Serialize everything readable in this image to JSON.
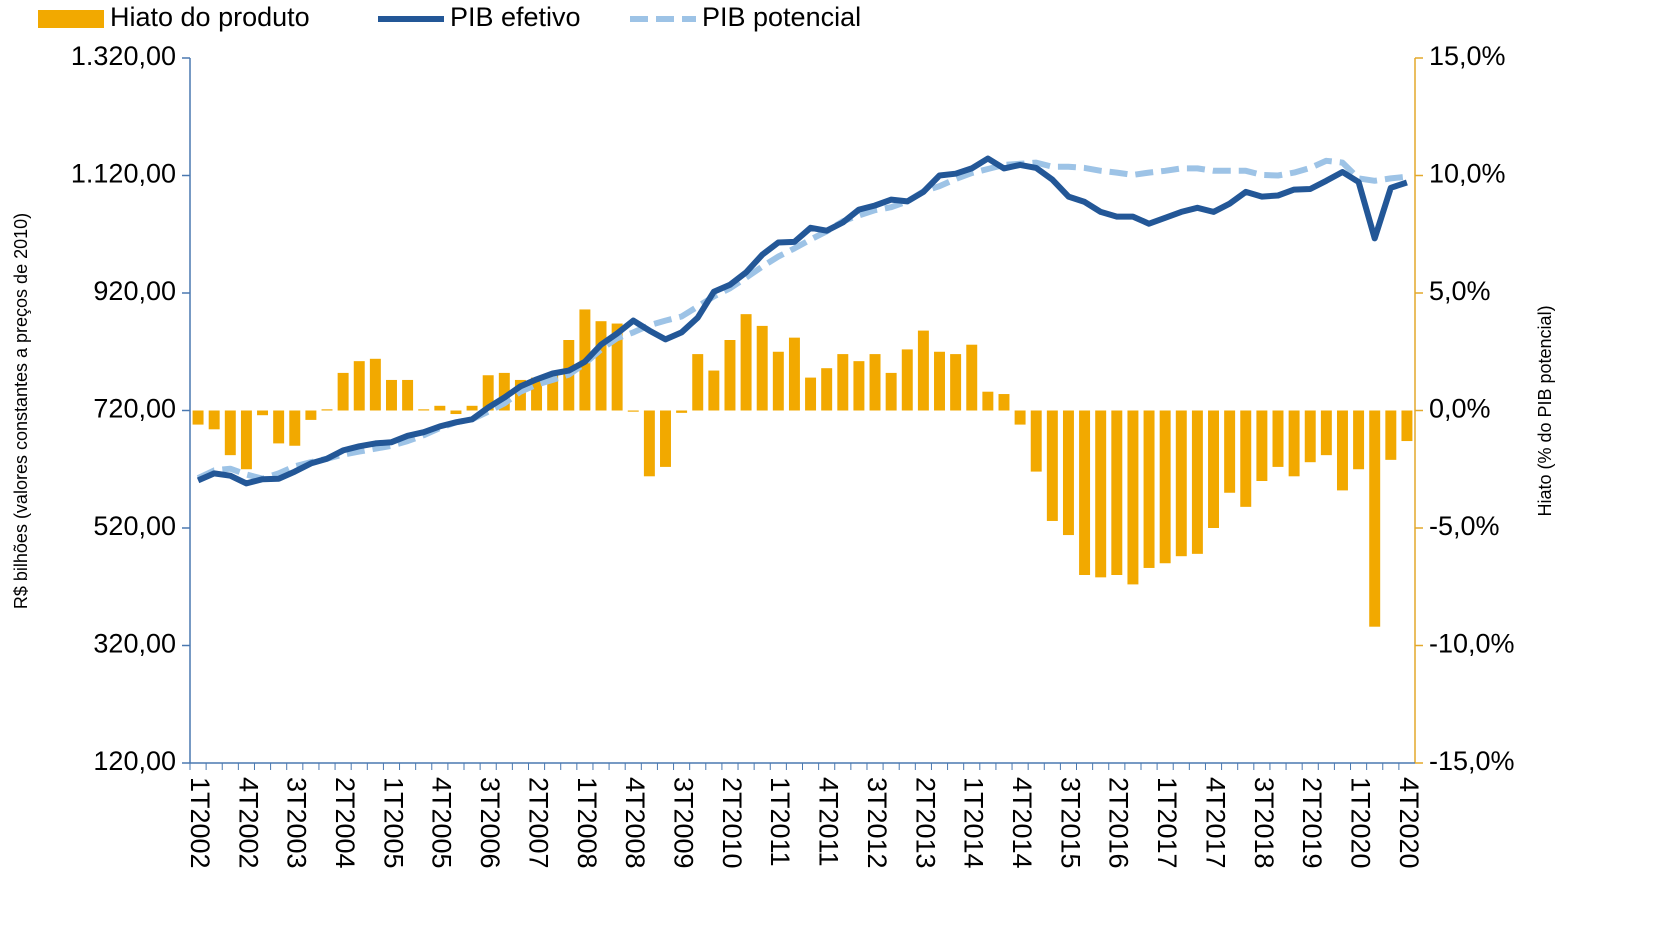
{
  "chart_data": {
    "type": "combo",
    "y_label": "R$ bilhões (valores constantes a preços de 2010)",
    "y2_label": "Hiato (% do PIB potencial)",
    "categories": [
      "1T2002",
      null,
      null,
      "4T2002",
      null,
      null,
      "3T2003",
      null,
      null,
      "2T2004",
      null,
      null,
      "1T2005",
      null,
      null,
      "4T2005",
      null,
      null,
      "3T2006",
      null,
      null,
      "2T2007",
      null,
      null,
      "1T2008",
      null,
      null,
      "4T2008",
      null,
      null,
      "3T2009",
      null,
      null,
      "2T2010",
      null,
      null,
      "1T2011",
      null,
      null,
      "4T2011",
      null,
      null,
      "3T2012",
      null,
      null,
      "2T2013",
      null,
      null,
      "1T2014",
      null,
      null,
      "4T2014",
      null,
      null,
      "3T2015",
      null,
      null,
      "2T2016",
      null,
      null,
      "1T2017",
      null,
      null,
      "4T2017",
      null,
      null,
      "3T2018",
      null,
      null,
      "2T2019",
      null,
      null,
      "1T2020",
      null,
      null,
      "4T2020"
    ],
    "series": [
      {
        "name": "Hiato do produto",
        "type": "bar",
        "axis": "y2",
        "color": "#f2a900",
        "values": [
          -0.6,
          -0.8,
          -1.9,
          -2.5,
          -0.2,
          -1.4,
          -1.5,
          -0.4,
          0.05,
          1.6,
          2.1,
          2.2,
          1.3,
          1.3,
          0.05,
          0.2,
          -0.15,
          0.2,
          1.5,
          1.6,
          1.3,
          1.4,
          1.5,
          3.0,
          4.3,
          3.8,
          3.7,
          -0.05,
          -2.8,
          -2.4,
          -0.1,
          2.4,
          1.7,
          3.0,
          4.1,
          3.6,
          2.5,
          3.1,
          1.4,
          1.8,
          2.4,
          2.1,
          2.4,
          1.6,
          2.6,
          3.4,
          2.5,
          2.4,
          2.8,
          0.8,
          0.7,
          -0.6,
          -2.6,
          -4.7,
          -5.3,
          -7.0,
          -7.1,
          -7.0,
          -7.4,
          -6.7,
          -6.5,
          -6.2,
          -6.1,
          -5.0,
          -3.5,
          -4.1,
          -3.0,
          -2.4,
          -2.8,
          -2.2,
          -1.9,
          -3.4,
          -2.5,
          -9.2,
          -2.1,
          -1.3
        ]
      },
      {
        "name": "PIB efetivo",
        "type": "line",
        "color": "#235797",
        "dashed": false,
        "values": [
          601,
          613,
          609,
          596,
          603,
          604,
          616,
          630,
          638,
          652,
          659,
          664,
          666,
          677,
          683,
          693,
          700,
          705,
          725,
          742,
          761,
          773,
          783,
          788,
          803,
          832,
          851,
          873,
          856,
          841,
          853,
          878,
          922,
          934,
          955,
          985,
          1006,
          1007,
          1031,
          1026,
          1040,
          1062,
          1069,
          1079,
          1076,
          1092,
          1120,
          1123,
          1132,
          1149,
          1132,
          1138,
          1133,
          1113,
          1084,
          1075,
          1058,
          1050,
          1050,
          1038,
          1048,
          1058,
          1065,
          1058,
          1072,
          1092,
          1084,
          1086,
          1096,
          1097,
          1111,
          1126,
          1109,
          1013,
          1099,
          1108
        ]
      },
      {
        "name": "PIB potencial",
        "type": "line",
        "color": "#9dc3e6",
        "dashed": true,
        "values": [
          605,
          618,
          621,
          611,
          604,
          613,
          625,
          632,
          638,
          645,
          650,
          655,
          660,
          668,
          678,
          690,
          700,
          705,
          718,
          732,
          752,
          764,
          772,
          781,
          800,
          824,
          843,
          853,
          865,
          873,
          880,
          897,
          914,
          928,
          946,
          965,
          982,
          996,
          1011,
          1025,
          1042,
          1052,
          1061,
          1066,
          1076,
          1093,
          1102,
          1114,
          1124,
          1131,
          1138,
          1140,
          1142,
          1135,
          1135,
          1133,
          1128,
          1125,
          1121,
          1125,
          1128,
          1132,
          1132,
          1128,
          1128,
          1128,
          1121,
          1120,
          1125,
          1133,
          1145,
          1142,
          1115,
          1111,
          1115,
          1118
        ]
      }
    ],
    "ylim": [
      120,
      1320
    ],
    "yticks": [
      {
        "value": 120,
        "label": "120,00"
      },
      {
        "value": 320,
        "label": "320,00"
      },
      {
        "value": 520,
        "label": "520,00"
      },
      {
        "value": 720,
        "label": "720,00"
      },
      {
        "value": 920,
        "label": "920,00"
      },
      {
        "value": 1120,
        "label": "1.120,00"
      },
      {
        "value": 1320,
        "label": "1.320,00"
      }
    ],
    "y2lim": [
      -15,
      15
    ],
    "y2ticks": [
      {
        "value": -15,
        "label": "-15,0%"
      },
      {
        "value": -10,
        "label": "-10,0%"
      },
      {
        "value": -5,
        "label": "-5,0%"
      },
      {
        "value": 0,
        "label": "0,0%"
      },
      {
        "value": 5,
        "label": "5,0%"
      },
      {
        "value": 10,
        "label": "10,0%"
      },
      {
        "value": 15,
        "label": "15,0%"
      }
    ],
    "legend": "top-left"
  }
}
